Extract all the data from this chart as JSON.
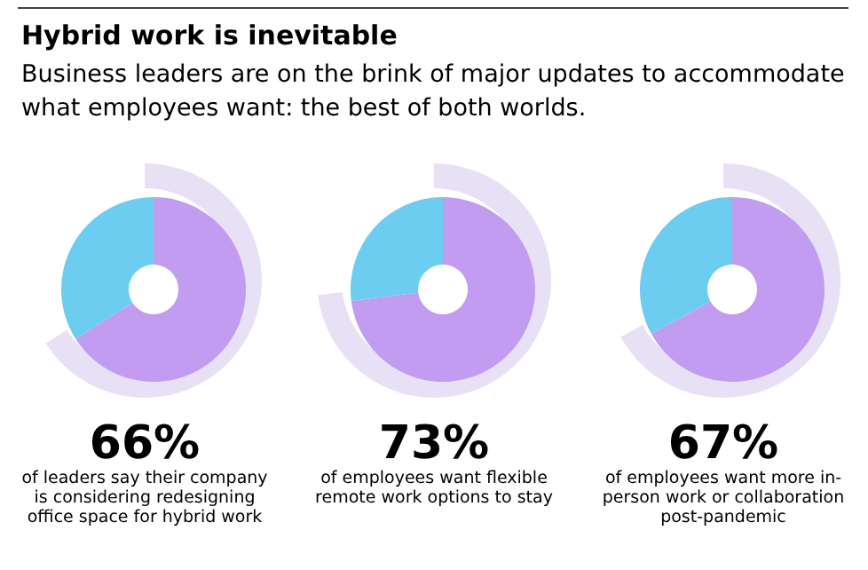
{
  "chart_data": [
    {
      "type": "donut",
      "title": "Hybrid work is inevitable",
      "subtitle": "Business leaders are on the brink of major updates to accommodate what employees want: the best of both worlds.",
      "categories": [
        null,
        null
      ],
      "values": [
        66,
        34
      ],
      "colors": [
        "#c29cf1",
        "#6ccdf1"
      ],
      "value_labels": [
        "66%",
        null
      ],
      "annotations": [
        "of leaders say their company is considering redesigning office space for hybrid work"
      ]
    },
    {
      "type": "donut",
      "categories": [
        null,
        null
      ],
      "values": [
        73,
        27
      ],
      "colors": [
        "#c29cf1",
        "#6ccdf1"
      ],
      "value_labels": [
        "73%",
        null
      ],
      "annotations": [
        "of employees want flexible remote work options to stay"
      ]
    },
    {
      "type": "donut",
      "categories": [
        null,
        null
      ],
      "values": [
        67,
        33
      ],
      "colors": [
        "#c29cf1",
        "#6ccdf1"
      ],
      "value_labels": [
        "67%",
        null
      ],
      "annotations": [
        "of employees want more in-person work or collaboration post-pandemic"
      ]
    }
  ]
}
